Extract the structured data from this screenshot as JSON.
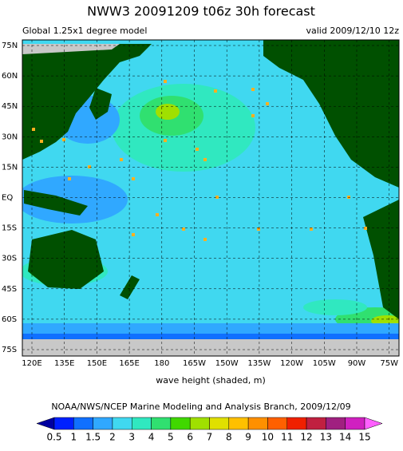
{
  "header": {
    "title": "NWW3 20091209 t06z  30h forecast",
    "left": "Global 1.25x1 degree model",
    "right": "valid 2009/12/10 12z"
  },
  "map": {
    "lat_labels": [
      "75N",
      "60N",
      "45N",
      "30N",
      "15N",
      "EQ",
      "15S",
      "30S",
      "45S",
      "60S",
      "75S"
    ],
    "lon_labels": [
      "120E",
      "135E",
      "150E",
      "165E",
      "180",
      "165W",
      "150W",
      "135W",
      "120W",
      "105W",
      "90W",
      "75W"
    ],
    "xlabel": "wave height (shaded, m)"
  },
  "credit": "NOAA/NWS/NCEP Marine Modeling and Analysis Branch, 2009/12/09",
  "colorbar": {
    "labels": [
      0.5,
      1,
      1.5,
      2,
      3,
      4,
      5,
      6,
      7,
      8,
      9,
      10,
      11,
      12,
      13,
      14,
      15
    ],
    "colors": [
      "#0000a0",
      "#0020ff",
      "#1070ff",
      "#30a8ff",
      "#40d8f0",
      "#30e8c0",
      "#30e070",
      "#40d800",
      "#a0e000",
      "#e0e000",
      "#ffc000",
      "#ff9000",
      "#ff6000",
      "#f02000",
      "#c02040",
      "#a02080",
      "#d020c0",
      "#ff60ff"
    ]
  }
}
